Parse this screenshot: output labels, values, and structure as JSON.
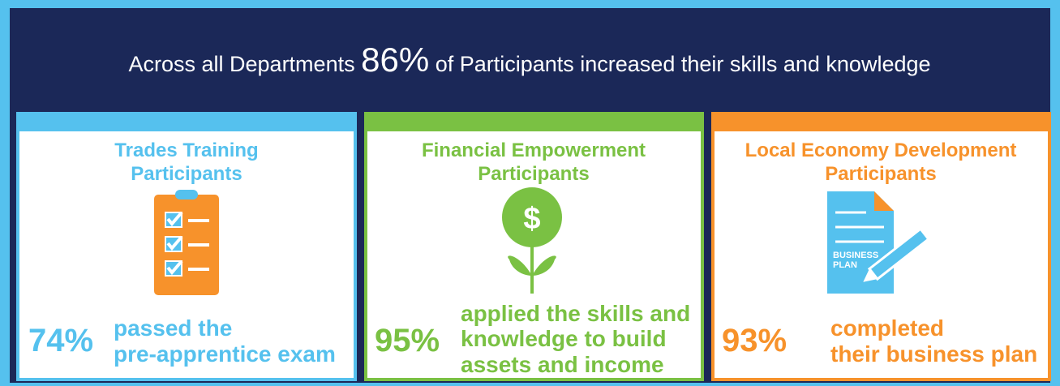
{
  "header": {
    "before": "Across all Departments",
    "highlight": "86%",
    "after": "of Participants increased their skills and knowledge"
  },
  "cards": [
    {
      "title": [
        "Trades Training",
        "Participants"
      ],
      "percent": "74%",
      "description": [
        "passed the",
        "pre-apprentice exam"
      ]
    },
    {
      "title": [
        "Financial Empowerment",
        "Participants"
      ],
      "percent": "95%",
      "icon_label": "$",
      "description": [
        "applied the skills and",
        "knowledge to build",
        "assets and income"
      ]
    },
    {
      "title": [
        "Local Economy Development",
        "Participants"
      ],
      "percent": "93%",
      "icon_label": [
        "BUSINESS",
        "PLAN"
      ],
      "description": [
        "completed",
        "their business plan"
      ]
    }
  ]
}
